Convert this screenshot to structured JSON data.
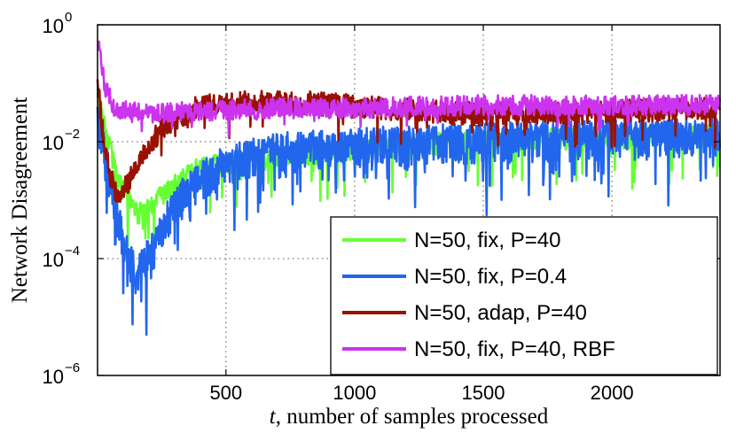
{
  "chart_data": {
    "type": "line",
    "ylabel": "Network Disagreement",
    "xlabel_var": "t",
    "xlabel_rest": ", number of samples processed",
    "y_scale": "log",
    "xlim": [
      1,
      2420
    ],
    "ylim_exp": [
      -6,
      0
    ],
    "x_ticks": [
      500,
      1000,
      1500,
      2000
    ],
    "x_tick_labels": [
      "500",
      "1000",
      "1500",
      "2000"
    ],
    "y_tick_exps": [
      -6,
      -4,
      -2,
      0
    ],
    "y_tick_labels": [
      "10",
      "10",
      "10",
      "10"
    ],
    "y_tick_sup": [
      "−6",
      "−4",
      "−2",
      "0"
    ],
    "grid": true,
    "legend_position": "lower-right",
    "series": [
      {
        "name": "N=50, fix, P=40",
        "color": "#66ff33",
        "noise_up": 0.15,
        "noise_down": 0.22,
        "spike_prob": 0.06,
        "spike_depth": 0.9,
        "anchors": [
          [
            1,
            -1.2
          ],
          [
            40,
            -1.9
          ],
          [
            80,
            -2.6
          ],
          [
            150,
            -3.2
          ],
          [
            200,
            -3.1
          ],
          [
            300,
            -2.7
          ],
          [
            400,
            -2.4
          ],
          [
            600,
            -2.3
          ],
          [
            800,
            -2.2
          ],
          [
            1000,
            -2.1
          ],
          [
            1300,
            -2.0
          ],
          [
            1600,
            -1.95
          ],
          [
            2000,
            -1.9
          ],
          [
            2420,
            -1.85
          ]
        ]
      },
      {
        "name": "N=50, fix, P=0.4",
        "color": "#2266ee",
        "noise_up": 0.25,
        "noise_down": 0.45,
        "spike_prob": 0.1,
        "spike_depth": 1.0,
        "anchors": [
          [
            1,
            -1.6
          ],
          [
            40,
            -2.4
          ],
          [
            80,
            -3.3
          ],
          [
            120,
            -3.8
          ],
          [
            150,
            -4.2
          ],
          [
            200,
            -3.9
          ],
          [
            250,
            -3.5
          ],
          [
            300,
            -3.0
          ],
          [
            400,
            -2.6
          ],
          [
            500,
            -2.3
          ],
          [
            700,
            -2.1
          ],
          [
            1000,
            -2.0
          ],
          [
            1300,
            -1.95
          ],
          [
            1700,
            -1.9
          ],
          [
            2420,
            -1.85
          ]
        ]
      },
      {
        "name": "N=50, adap, P=40",
        "color": "#991100",
        "noise_up": 0.22,
        "noise_down": 0.18,
        "spike_prob": 0.04,
        "spike_depth": 0.5,
        "anchors": [
          [
            1,
            -1.0
          ],
          [
            20,
            -1.8
          ],
          [
            50,
            -2.6
          ],
          [
            80,
            -2.9
          ],
          [
            120,
            -2.7
          ],
          [
            180,
            -2.2
          ],
          [
            250,
            -1.8
          ],
          [
            400,
            -1.4
          ],
          [
            600,
            -1.35
          ],
          [
            800,
            -1.35
          ],
          [
            1100,
            -1.45
          ],
          [
            1500,
            -1.55
          ],
          [
            2000,
            -1.5
          ],
          [
            2420,
            -1.45
          ]
        ]
      },
      {
        "name": "N=50, fix, P=40, RBF",
        "color": "#cc33ee",
        "noise_up": 0.2,
        "noise_down": 0.15,
        "spike_prob": 0.03,
        "spike_depth": 0.3,
        "anchors": [
          [
            1,
            -0.3
          ],
          [
            10,
            -0.5
          ],
          [
            30,
            -1.1
          ],
          [
            60,
            -1.4
          ],
          [
            100,
            -1.5
          ],
          [
            200,
            -1.55
          ],
          [
            400,
            -1.5
          ],
          [
            700,
            -1.45
          ],
          [
            1000,
            -1.45
          ],
          [
            1500,
            -1.4
          ],
          [
            2000,
            -1.4
          ],
          [
            2420,
            -1.4
          ]
        ]
      }
    ]
  }
}
